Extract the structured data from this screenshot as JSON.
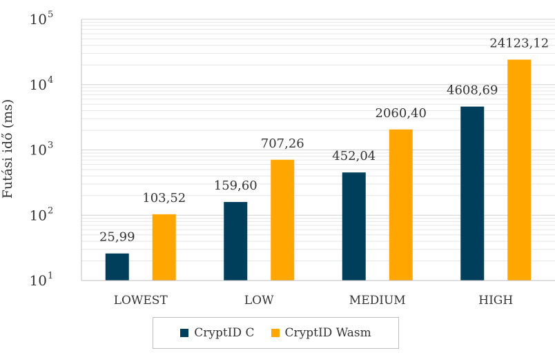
{
  "chart_data": {
    "type": "bar",
    "ylabel": "Futási idő (ms)",
    "yscale": "log",
    "ylim": [
      10,
      100000
    ],
    "ytick_base": "10",
    "ytick_exponents": [
      "1",
      "2",
      "3",
      "4",
      "5"
    ],
    "categories": [
      "LOWEST",
      "LOW",
      "MEDIUM",
      "HIGH"
    ],
    "series": [
      {
        "name": "CryptID C",
        "color": "#003f5c",
        "values": [
          25.99,
          159.6,
          452.04,
          4608.69
        ],
        "labels": [
          "25,99",
          "159,60",
          "452,04",
          "4608,69"
        ]
      },
      {
        "name": "CryptID Wasm",
        "color": "#ffa600",
        "values": [
          103.52,
          707.26,
          2060.4,
          24123.12
        ],
        "labels": [
          "103,52",
          "707,26",
          "2060,40",
          "24123,12"
        ]
      }
    ],
    "grid": true,
    "legend_position": "bottom"
  }
}
